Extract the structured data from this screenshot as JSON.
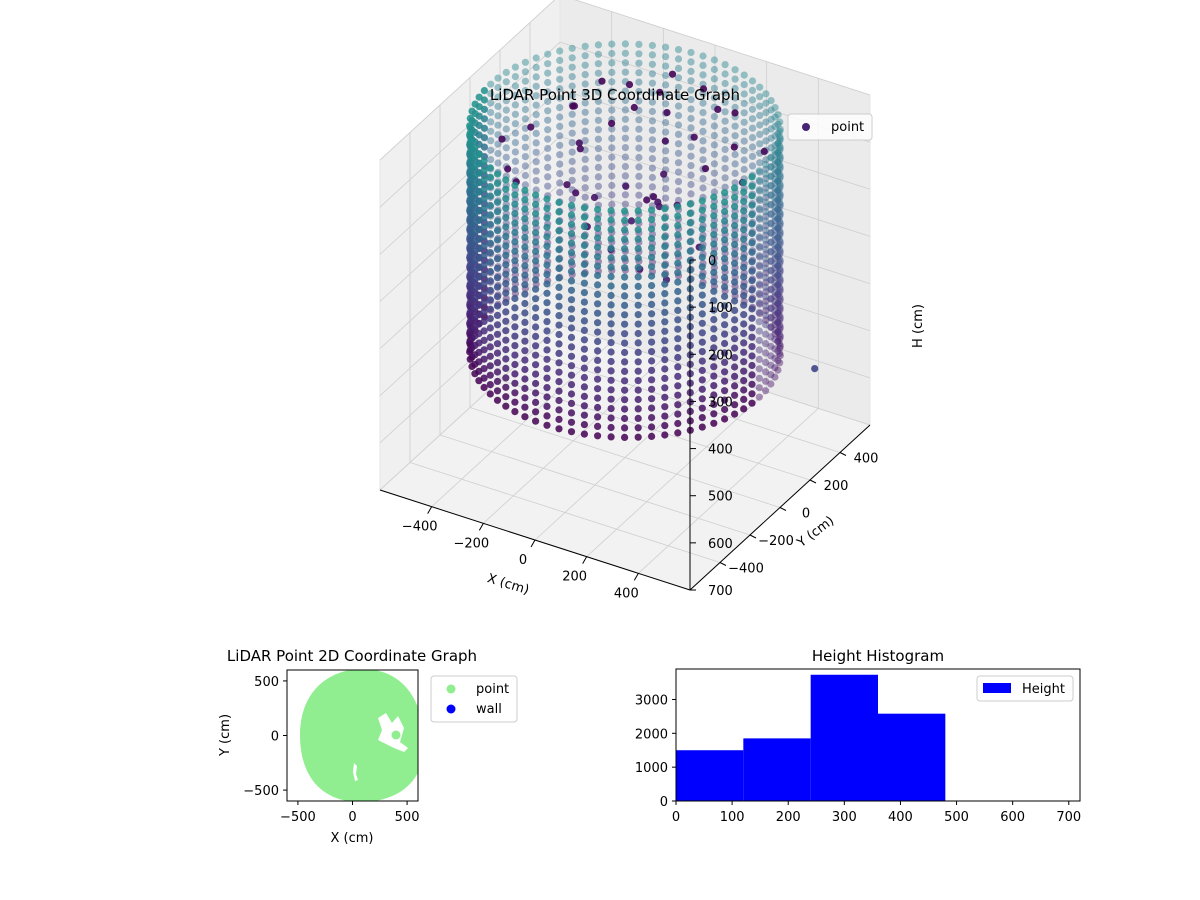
{
  "chart_data": [
    {
      "type": "scatter",
      "projection": "3d",
      "title": "LiDAR Point 3D Coordinate Graph",
      "xlabel": "X (cm)",
      "ylabel": "Y (cm)",
      "zlabel": "H (cm)",
      "x_ticks": [
        -400,
        -200,
        0,
        200,
        400
      ],
      "x_tick_labels": [
        "−400",
        "−200",
        "0",
        "200",
        "400"
      ],
      "y_ticks": [
        -400,
        -200,
        0,
        200,
        400
      ],
      "y_tick_labels": [
        "−400",
        "−200",
        "0",
        "200",
        "400"
      ],
      "z_ticks": [
        0,
        100,
        200,
        300,
        400,
        500,
        600,
        700
      ],
      "z_tick_labels": [
        "0",
        "100",
        "200",
        "300",
        "400",
        "500",
        "600",
        "700"
      ],
      "zlim": [
        700,
        0
      ],
      "z_inverted": true,
      "grid": true,
      "legend": {
        "position": "top-right",
        "entries": [
          {
            "label": "point",
            "color": "#482475"
          }
        ]
      },
      "colormap": "viridis",
      "description_data": {
        "wall_radius_cm": 520,
        "wall_height_range_cm": [
          0,
          480
        ],
        "interior_points": [
          [
            -300,
            180,
            60
          ],
          [
            -260,
            100,
            30
          ],
          [
            -200,
            40,
            80
          ],
          [
            -150,
            -40,
            60
          ],
          [
            -110,
            100,
            40
          ],
          [
            -80,
            200,
            30
          ],
          [
            -40,
            300,
            20
          ],
          [
            0,
            280,
            50
          ],
          [
            40,
            200,
            80
          ],
          [
            80,
            120,
            120
          ],
          [
            110,
            40,
            160
          ],
          [
            150,
            -40,
            120
          ],
          [
            180,
            -120,
            80
          ],
          [
            200,
            -200,
            60
          ],
          [
            260,
            -100,
            90
          ],
          [
            300,
            20,
            40
          ],
          [
            330,
            160,
            30
          ],
          [
            240,
            320,
            20
          ],
          [
            150,
            360,
            40
          ],
          [
            60,
            420,
            30
          ],
          [
            -60,
            420,
            20
          ],
          [
            -180,
            340,
            40
          ],
          [
            -240,
            260,
            20
          ],
          [
            -120,
            -180,
            90
          ],
          [
            -40,
            -260,
            70
          ],
          [
            40,
            -320,
            110
          ],
          [
            120,
            -300,
            150
          ],
          [
            220,
            -280,
            180
          ],
          [
            300,
            -240,
            200
          ],
          [
            380,
            -160,
            140
          ],
          [
            420,
            60,
            60
          ],
          [
            400,
            240,
            50
          ],
          [
            -330,
            -60,
            40
          ],
          [
            -360,
            -200,
            30
          ],
          [
            -280,
            -300,
            50
          ],
          [
            -200,
            -380,
            40
          ],
          [
            -20,
            40,
            140
          ],
          [
            60,
            -60,
            170
          ],
          [
            -60,
            -100,
            130
          ],
          [
            140,
            220,
            60
          ],
          [
            560,
            300,
            500
          ]
        ]
      }
    },
    {
      "type": "scatter",
      "title": "LiDAR Point 2D Coordinate Graph",
      "xlabel": "X (cm)",
      "ylabel": "Y (cm)",
      "xlim": [
        -600,
        600
      ],
      "ylim": [
        -600,
        600
      ],
      "x_ticks": [
        -500,
        0,
        500
      ],
      "x_tick_labels": [
        "−500",
        "0",
        "500"
      ],
      "y_ticks": [
        -500,
        0,
        500
      ],
      "y_tick_labels": [
        "−500",
        "0",
        "500"
      ],
      "series": [
        {
          "name": "point",
          "color": "#90ee90",
          "shape": "filled-disc",
          "center": [
            100,
            0
          ],
          "radius": 540
        },
        {
          "name": "wall",
          "color": "#0000ff",
          "values": []
        }
      ],
      "legend": {
        "position": "outside-right"
      }
    },
    {
      "type": "bar",
      "title": "Height Histogram",
      "bin_edges": [
        0,
        120,
        240,
        360,
        480,
        600,
        720
      ],
      "values": [
        1500,
        1850,
        3730,
        2580,
        0,
        0
      ],
      "xlim": [
        0,
        720
      ],
      "ylim": [
        0,
        3900
      ],
      "x_ticks": [
        0,
        100,
        200,
        300,
        400,
        500,
        600,
        700
      ],
      "x_tick_labels": [
        "0",
        "100",
        "200",
        "300",
        "400",
        "500",
        "600",
        "700"
      ],
      "y_ticks": [
        0,
        1000,
        2000,
        3000
      ],
      "y_tick_labels": [
        "0",
        "1000",
        "2000",
        "3000"
      ],
      "color": "#0000ff",
      "legend": {
        "position": "top-right",
        "entries": [
          {
            "label": "Height",
            "color": "#0000ff"
          }
        ]
      }
    }
  ]
}
